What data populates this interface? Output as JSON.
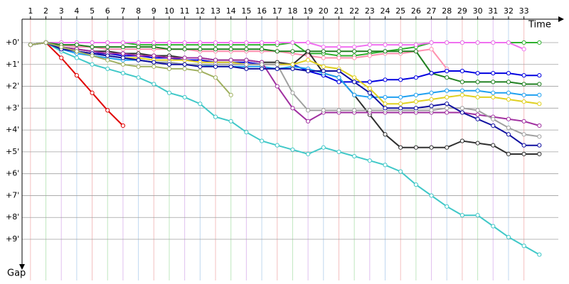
{
  "chart_data": {
    "type": "line",
    "x_label": "Time",
    "y_label": "Gap",
    "grid": true,
    "x": [
      1,
      2,
      3,
      4,
      5,
      6,
      7,
      8,
      9,
      10,
      11,
      12,
      13,
      14,
      15,
      16,
      17,
      18,
      19,
      20,
      21,
      22,
      23,
      24,
      25,
      26,
      27,
      28,
      29,
      30,
      31,
      32,
      33,
      34
    ],
    "xlim": [
      0.5,
      35
    ],
    "xticks": [
      1,
      2,
      3,
      4,
      5,
      6,
      7,
      8,
      9,
      10,
      11,
      12,
      13,
      14,
      15,
      16,
      17,
      18,
      19,
      20,
      21,
      22,
      23,
      24,
      25,
      26,
      27,
      28,
      29,
      30,
      31,
      32,
      33
    ],
    "ylim": [
      -1,
      10
    ],
    "yticks": [
      {
        "value": 0,
        "label": "+0'"
      },
      {
        "value": 1,
        "label": "+1'"
      },
      {
        "value": 2,
        "label": "+2'"
      },
      {
        "value": 3,
        "label": "+3'"
      },
      {
        "value": 4,
        "label": "+4'"
      },
      {
        "value": 5,
        "label": "+5'"
      },
      {
        "value": 6,
        "label": "+6'"
      },
      {
        "value": 7,
        "label": "+7'"
      },
      {
        "value": 8,
        "label": "+8'"
      },
      {
        "value": 9,
        "label": "+9'"
      }
    ],
    "series": [
      {
        "color": "#e00000",
        "values": [
          0.1,
          0,
          0.7,
          1.5,
          2.3,
          3.1,
          3.8,
          null,
          null,
          null,
          null,
          null,
          null,
          null,
          null,
          null,
          null,
          null,
          null,
          null,
          null,
          null,
          null,
          null,
          null,
          null,
          null,
          null,
          null,
          null,
          null,
          null,
          null,
          null
        ]
      },
      {
        "color": "#40c8c8",
        "values": [
          0.1,
          0,
          0.4,
          0.7,
          1.0,
          1.2,
          1.4,
          1.6,
          1.9,
          2.3,
          2.5,
          2.8,
          3.4,
          3.6,
          4.1,
          4.5,
          4.7,
          4.9,
          5.1,
          4.8,
          5.0,
          5.2,
          5.4,
          5.6,
          5.9,
          6.5,
          7.0,
          7.5,
          7.9,
          7.9,
          8.4,
          8.9,
          9.3,
          9.7
        ]
      },
      {
        "color": "#30b030",
        "values": [
          0.1,
          0,
          0,
          0,
          0,
          0,
          0,
          0.1,
          0.1,
          0.1,
          0.1,
          0.1,
          0.1,
          0.1,
          0.1,
          0.1,
          0.1,
          0,
          0.5,
          0.5,
          0.6,
          0.6,
          0.5,
          0.4,
          0.3,
          0.2,
          0,
          0,
          0,
          0,
          0,
          0,
          0,
          0
        ]
      },
      {
        "color": "#f070f0",
        "values": [
          0.1,
          0,
          0,
          0,
          0,
          0,
          0,
          0,
          0,
          0,
          0,
          0,
          0,
          0,
          0,
          0,
          0,
          0,
          0,
          0.2,
          0.2,
          0.2,
          0.1,
          0.1,
          0.1,
          0.1,
          0,
          0,
          0,
          0,
          0,
          0,
          0.3,
          null
        ]
      },
      {
        "color": "#ff90b0",
        "values": [
          0.1,
          0,
          0.1,
          0.2,
          0.2,
          0.3,
          0.3,
          0.3,
          0.3,
          0.3,
          0.3,
          0.4,
          0.4,
          0.4,
          0.4,
          0.4,
          0.4,
          0.5,
          0.6,
          0.7,
          0.7,
          0.7,
          0.6,
          0.5,
          0.5,
          0.4,
          0.3,
          1.2,
          null,
          null,
          null,
          null,
          null,
          null
        ]
      },
      {
        "color": "#208020",
        "values": [
          0.1,
          0,
          0.1,
          0.1,
          0.2,
          0.2,
          0.2,
          0.2,
          0.2,
          0.3,
          0.3,
          0.3,
          0.3,
          0.3,
          0.3,
          0.3,
          0.4,
          0.4,
          0.4,
          0.4,
          0.4,
          0.4,
          0.4,
          0.4,
          0.4,
          0.4,
          1.4,
          1.6,
          1.8,
          1.8,
          1.8,
          1.8,
          1.9,
          1.9
        ]
      },
      {
        "color": "#0000e0",
        "values": [
          0.1,
          0,
          0.3,
          0.4,
          0.5,
          0.5,
          0.6,
          0.6,
          0.7,
          0.7,
          0.8,
          0.8,
          0.9,
          0.9,
          0.9,
          1.0,
          1.0,
          1.0,
          1.3,
          1.5,
          1.8,
          1.8,
          1.8,
          1.7,
          1.7,
          1.6,
          1.4,
          1.3,
          1.3,
          1.4,
          1.4,
          1.4,
          1.5,
          1.5
        ]
      },
      {
        "color": "#303030",
        "values": [
          0.1,
          0,
          0.2,
          0.3,
          0.4,
          0.4,
          0.5,
          0.5,
          0.6,
          0.6,
          0.7,
          0.7,
          0.8,
          0.8,
          0.8,
          0.9,
          0.9,
          1.0,
          0.4,
          1.4,
          1.6,
          2.4,
          3.3,
          4.2,
          4.8,
          4.8,
          4.8,
          4.8,
          4.5,
          4.6,
          4.7,
          5.1,
          5.1,
          5.1
        ]
      },
      {
        "color": "#20a0f0",
        "values": [
          0.1,
          0,
          0.3,
          0.5,
          0.6,
          0.7,
          0.8,
          0.8,
          0.9,
          0.9,
          1.0,
          1.0,
          1.1,
          1.1,
          1.1,
          1.1,
          1.2,
          1.1,
          1.2,
          1.4,
          1.6,
          2.4,
          2.5,
          2.5,
          2.5,
          2.4,
          2.3,
          2.2,
          2.2,
          2.2,
          2.3,
          2.3,
          2.4,
          2.4
        ]
      },
      {
        "color": "#e0d020",
        "values": [
          0.1,
          0,
          0.2,
          0.4,
          0.5,
          0.6,
          0.7,
          0.7,
          0.8,
          0.8,
          0.8,
          0.9,
          0.9,
          0.9,
          1.0,
          1.0,
          1.0,
          1.0,
          0.8,
          1.1,
          1.2,
          1.6,
          2.1,
          2.8,
          2.8,
          2.7,
          2.6,
          2.5,
          2.4,
          2.5,
          2.5,
          2.6,
          2.7,
          2.8
        ]
      },
      {
        "color": "#a030a0",
        "values": [
          0.1,
          0,
          0.2,
          0.3,
          0.4,
          0.5,
          0.5,
          0.6,
          0.6,
          0.7,
          0.7,
          0.7,
          0.8,
          0.8,
          0.8,
          0.9,
          2.0,
          3.0,
          3.6,
          3.2,
          3.2,
          3.2,
          3.2,
          3.2,
          3.2,
          3.2,
          3.2,
          3.2,
          3.2,
          3.3,
          3.4,
          3.5,
          3.6,
          3.8
        ]
      },
      {
        "color": "#a0a0a0",
        "values": [
          0.1,
          0,
          0.3,
          0.4,
          0.5,
          0.6,
          0.7,
          0.8,
          0.9,
          0.9,
          1.0,
          1.0,
          1.0,
          1.0,
          1.0,
          1.0,
          1.0,
          2.3,
          3.1,
          3.1,
          3.1,
          3.1,
          3.1,
          3.1,
          3.1,
          3.1,
          3.1,
          3.0,
          3.0,
          3.1,
          3.5,
          3.9,
          4.2,
          4.3
        ]
      },
      {
        "color": "#1010a0",
        "values": [
          0.1,
          0,
          0.3,
          0.4,
          0.5,
          0.6,
          0.7,
          0.8,
          0.9,
          1.0,
          1.0,
          1.1,
          1.1,
          1.1,
          1.2,
          1.2,
          1.2,
          1.2,
          1.3,
          1.3,
          1.3,
          1.8,
          2.3,
          3.0,
          3.0,
          3.0,
          2.9,
          2.8,
          3.2,
          3.5,
          3.8,
          4.2,
          4.7,
          4.7
        ]
      },
      {
        "color": "#a0b060",
        "values": [
          0.1,
          0,
          0.2,
          0.4,
          0.6,
          0.8,
          1.0,
          1.1,
          1.1,
          1.2,
          1.2,
          1.3,
          1.6,
          2.4,
          null,
          null,
          null,
          null,
          null,
          null,
          null,
          null,
          null,
          null,
          null,
          null,
          null,
          null,
          null,
          null,
          null,
          null,
          null,
          null
        ]
      }
    ]
  }
}
